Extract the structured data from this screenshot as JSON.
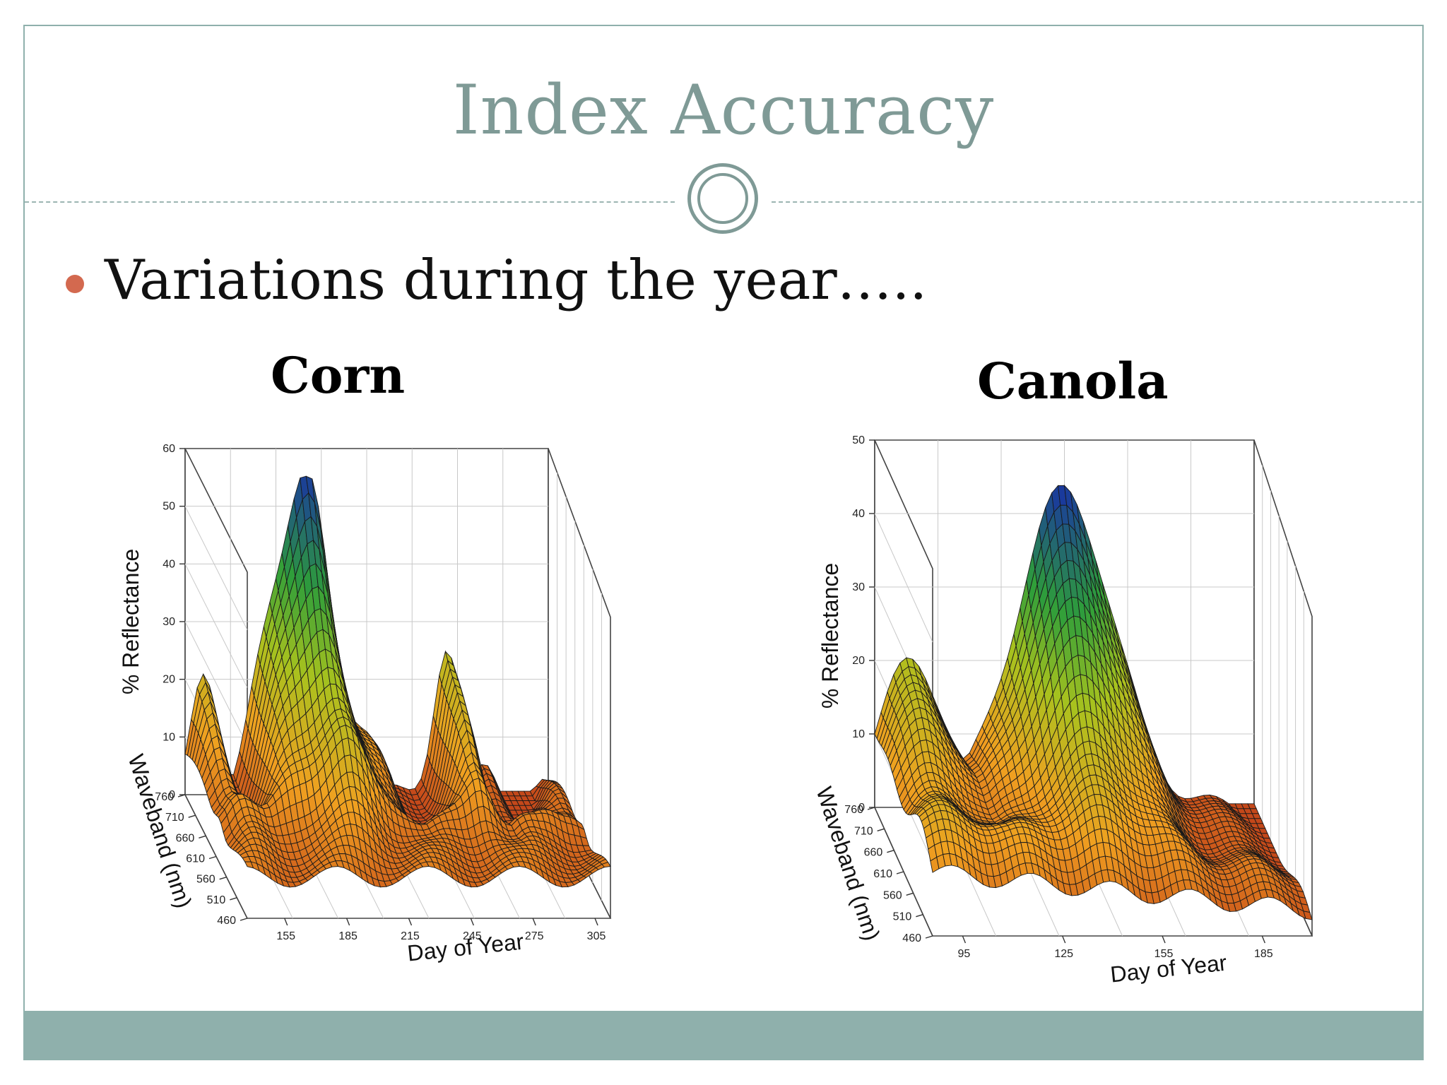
{
  "slide": {
    "title": "Index Accuracy",
    "bullet": "Variations during the year….."
  },
  "colors": {
    "accent": "#8fb0ac",
    "title": "#7f9a96",
    "bullet": "#d3694f",
    "surface_low": "#c2441a",
    "surface_mid": "#f0a020",
    "surface_mid2": "#a8c21e",
    "surface_mid3": "#2e9e3a",
    "surface_high": "#1a3a9c"
  },
  "chart_data": [
    {
      "type": "surface3d",
      "title": "Corn",
      "zlabel": "% Reflectance",
      "ylabel": "Waveband (nm)",
      "xlabel": "Day of Year",
      "z_ticks": [
        "0",
        "10",
        "20",
        "30",
        "40",
        "50",
        "60"
      ],
      "y_ticks": [
        "760",
        "710",
        "660",
        "610",
        "560",
        "510",
        "460"
      ],
      "x_ticks": [
        "155",
        "185",
        "215",
        "245",
        "275",
        "305"
      ],
      "zlim": [
        0,
        60
      ],
      "ylim": [
        460,
        760
      ],
      "xlim": [
        140,
        305
      ],
      "peak_reflectance": 54,
      "peak_day": 195
    },
    {
      "type": "surface3d",
      "title": "Canola",
      "zlabel": "% Reflectance",
      "ylabel": "Waveband (nm)",
      "xlabel": "Day of Year",
      "z_ticks": [
        "0",
        "10",
        "20",
        "30",
        "40",
        "50"
      ],
      "y_ticks": [
        "760",
        "710",
        "660",
        "610",
        "560",
        "510",
        "460"
      ],
      "x_ticks": [
        "95",
        "125",
        "155",
        "185"
      ],
      "zlim": [
        0,
        50
      ],
      "ylim": [
        460,
        760
      ],
      "xlim": [
        90,
        200
      ],
      "peak_reflectance": 42,
      "peak_day": 150
    }
  ]
}
